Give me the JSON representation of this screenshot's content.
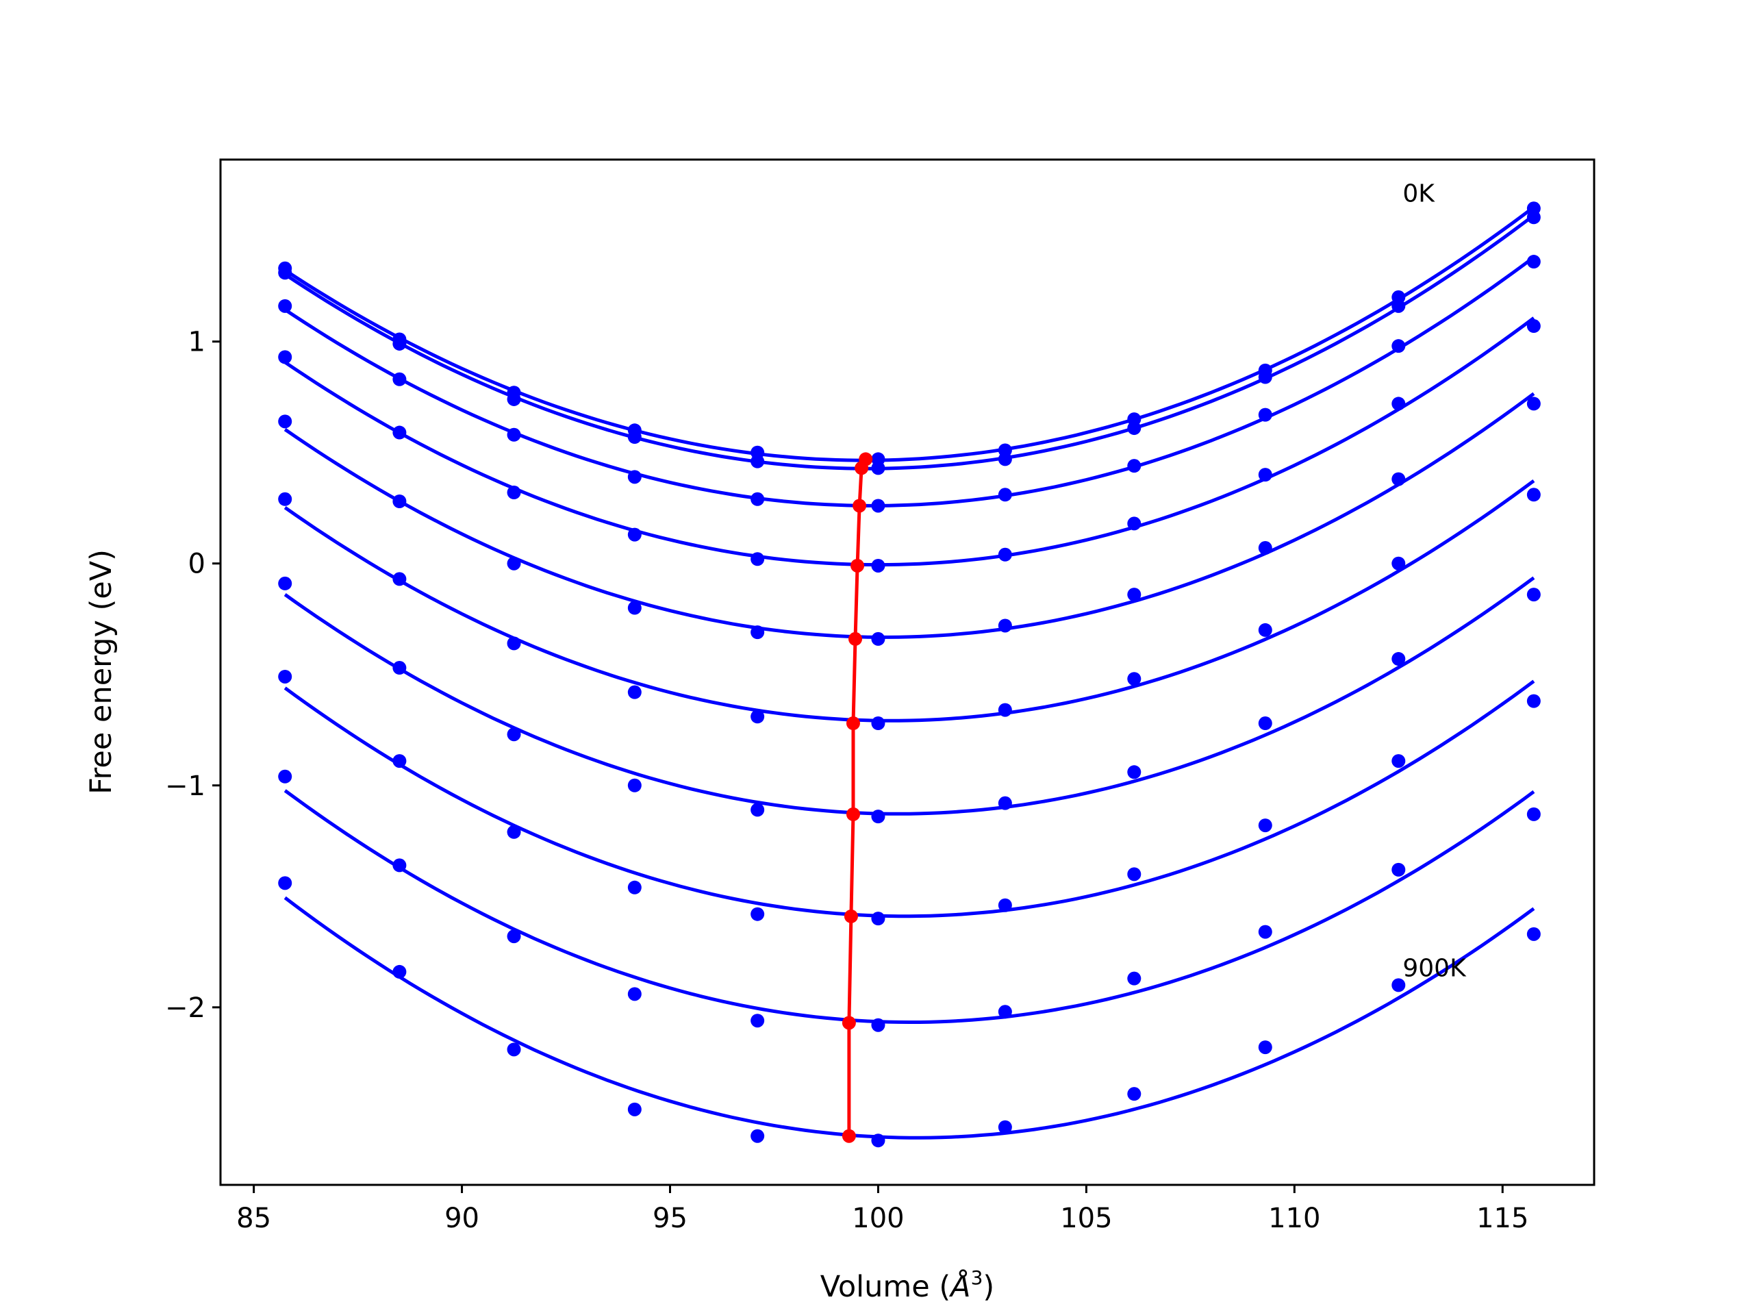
{
  "chart_data": {
    "type": "line",
    "title": "",
    "xlabel": "Volume (",
    "xlabel_symbol": "Å",
    "xlabel_exponent": "3",
    "xlabel_close": ")",
    "ylabel": "Free energy (eV)",
    "xlim": [
      84.2,
      117.2
    ],
    "ylim": [
      -2.8,
      1.82
    ],
    "xticks": [
      85,
      90,
      95,
      100,
      105,
      110,
      115
    ],
    "xtick_labels": [
      "85",
      "90",
      "95",
      "100",
      "105",
      "110",
      "115"
    ],
    "yticks": [
      1,
      0,
      -1,
      -2
    ],
    "ytick_labels": [
      "1",
      "0",
      "−1",
      "−2"
    ],
    "grid": false,
    "legend": "none",
    "annotations": [
      {
        "text": "0K",
        "x": 112.6,
        "y": 1.63
      },
      {
        "text": "900K",
        "x": 112.6,
        "y": -1.86
      }
    ],
    "x": [
      85.75,
      88.5,
      91.25,
      94.15,
      97.1,
      100.0,
      103.05,
      106.15,
      109.3,
      112.5,
      115.75
    ],
    "series": [
      {
        "values": [
          1.33,
          1.01,
          0.77,
          0.6,
          0.5,
          0.47,
          0.51,
          0.65,
          0.87,
          1.2,
          1.6
        ],
        "min": [
          99.7,
          0.47
        ]
      },
      {
        "values": [
          1.31,
          0.99,
          0.74,
          0.57,
          0.46,
          0.43,
          0.47,
          0.61,
          0.84,
          1.16,
          1.56
        ],
        "min": [
          99.6,
          0.43
        ]
      },
      {
        "values": [
          1.16,
          0.83,
          0.58,
          0.39,
          0.29,
          0.26,
          0.31,
          0.44,
          0.67,
          0.98,
          1.36
        ],
        "min": [
          99.55,
          0.26
        ]
      },
      {
        "values": [
          0.93,
          0.59,
          0.32,
          0.13,
          0.02,
          -0.01,
          0.04,
          0.18,
          0.4,
          0.72,
          1.07
        ],
        "min": [
          99.5,
          -0.01
        ]
      },
      {
        "values": [
          0.64,
          0.28,
          0.0,
          -0.2,
          -0.31,
          -0.34,
          -0.28,
          -0.14,
          0.07,
          0.38,
          0.72
        ],
        "min": [
          99.45,
          -0.34
        ]
      },
      {
        "values": [
          0.29,
          -0.07,
          -0.36,
          -0.58,
          -0.69,
          -0.72,
          -0.66,
          -0.52,
          -0.3,
          0.0,
          0.31
        ],
        "min": [
          99.4,
          -0.72
        ]
      },
      {
        "values": [
          -0.09,
          -0.47,
          -0.77,
          -1.0,
          -1.11,
          -1.14,
          -1.08,
          -0.94,
          -0.72,
          -0.43,
          -0.14
        ],
        "min": [
          99.4,
          -1.13
        ]
      },
      {
        "values": [
          -0.51,
          -0.89,
          -1.21,
          -1.46,
          -1.58,
          -1.6,
          -1.54,
          -1.4,
          -1.18,
          -0.89,
          -0.62
        ],
        "min": [
          99.35,
          -1.59
        ]
      },
      {
        "values": [
          -0.96,
          -1.36,
          -1.68,
          -1.94,
          -2.06,
          -2.08,
          -2.02,
          -1.87,
          -1.66,
          -1.38,
          -1.13
        ],
        "min": [
          99.3,
          -2.07
        ]
      },
      {
        "values": [
          -1.44,
          -1.84,
          -2.19,
          -2.46,
          -2.58,
          -2.6,
          -2.54,
          -2.39,
          -2.18,
          -1.9,
          -1.67
        ],
        "min": [
          99.3,
          -2.58
        ]
      }
    ],
    "colors": {
      "series": "#0000ff",
      "minima": "#ff0000",
      "axes": "#000000"
    }
  }
}
